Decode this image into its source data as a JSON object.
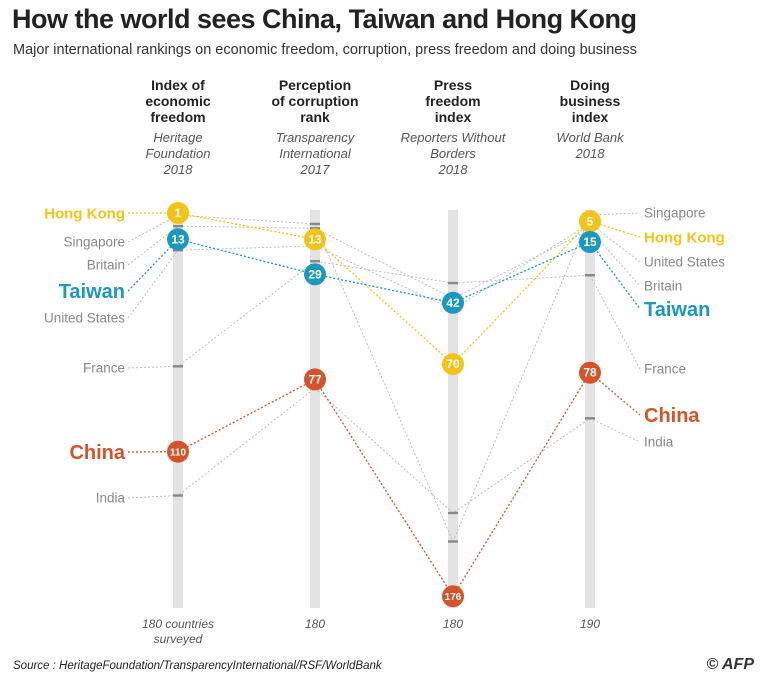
{
  "title": "How the world sees China, Taiwan and Hong Kong",
  "subtitle": "Major international rankings on economic freedom, corruption, press freedom and doing business",
  "source": "Source : HeritageFoundation/TransparencyInternational/RSF/WorldBank",
  "credit": "© AFP",
  "chart_data": {
    "type": "line",
    "subtype": "parallel-coordinates rank chart",
    "axes": [
      {
        "title": [
          "Index of",
          "economic",
          "freedom"
        ],
        "source": [
          "Heritage",
          "Foundation"
        ],
        "year": "2018",
        "total": 180,
        "total_label": [
          "180 countries",
          "surveyed"
        ]
      },
      {
        "title": [
          "Perception",
          "of corruption",
          "rank"
        ],
        "source": [
          "Transparency",
          "International"
        ],
        "year": "2017",
        "total": 180,
        "total_label": [
          "180"
        ]
      },
      {
        "title": [
          "Press",
          "freedom",
          "index"
        ],
        "source": [
          "Reporters Without",
          "Borders"
        ],
        "year": "2018",
        "total": 180,
        "total_label": [
          "180"
        ]
      },
      {
        "title": [
          "Doing",
          "business",
          "index"
        ],
        "source": [
          "World Bank"
        ],
        "year": "2018",
        "total": 190,
        "total_label": [
          "190"
        ]
      }
    ],
    "series": [
      {
        "name": "Hong Kong",
        "highlight": true,
        "color": "#f2c318",
        "values": [
          1,
          13,
          70,
          5
        ]
      },
      {
        "name": "Taiwan",
        "highlight": true,
        "color": "#1a98bd",
        "values": [
          13,
          29,
          42,
          15
        ]
      },
      {
        "name": "China",
        "highlight": true,
        "color": "#d4532b",
        "values": [
          110,
          77,
          176,
          78
        ]
      },
      {
        "name": "Singapore",
        "highlight": false,
        "color": "#aaaaaa",
        "values": [
          2,
          6,
          151,
          2
        ]
      },
      {
        "name": "Britain",
        "highlight": false,
        "color": "#aaaaaa",
        "values": [
          7,
          8,
          40,
          9
        ]
      },
      {
        "name": "United States",
        "highlight": false,
        "color": "#aaaaaa",
        "values": [
          18,
          16,
          45,
          6
        ]
      },
      {
        "name": "France",
        "highlight": false,
        "color": "#aaaaaa",
        "values": [
          71,
          23,
          33,
          31
        ]
      },
      {
        "name": "India",
        "highlight": false,
        "color": "#aaaaaa",
        "values": [
          130,
          81,
          138,
          100
        ]
      }
    ]
  }
}
